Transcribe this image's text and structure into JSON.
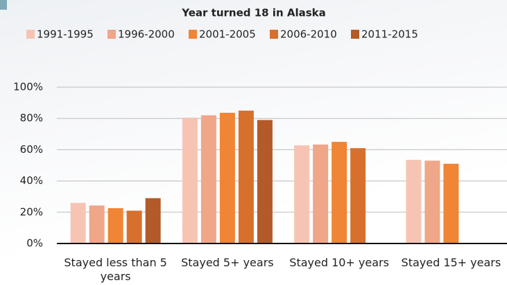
{
  "chart_data": {
    "type": "bar",
    "title": "Year turned 18 in Alaska",
    "categories": [
      "Stayed less than 5 years",
      "Stayed 5+ years",
      "Stayed 10+ years",
      "Stayed 15+ years"
    ],
    "series": [
      {
        "name": "1991-1995",
        "color": "#f7c4b4",
        "values": [
          26,
          80.5,
          62.8,
          53.5
        ]
      },
      {
        "name": "1996-2000",
        "color": "#f0a688",
        "values": [
          24.3,
          82,
          63.3,
          53
        ]
      },
      {
        "name": "2001-2005",
        "color": "#ef8535",
        "values": [
          22.6,
          83.6,
          65,
          51
        ]
      },
      {
        "name": "2006-2010",
        "color": "#d8702d",
        "values": [
          21,
          85,
          61,
          null
        ]
      },
      {
        "name": "2011-2015",
        "color": "#b35a28",
        "values": [
          29,
          79,
          null,
          null
        ]
      }
    ],
    "ylim": [
      0,
      100
    ],
    "yticks": [
      {
        "value": 0,
        "label": "0%"
      },
      {
        "value": 20,
        "label": "20%"
      },
      {
        "value": 40,
        "label": "40%"
      },
      {
        "value": 60,
        "label": "60%"
      },
      {
        "value": 80,
        "label": "80%"
      },
      {
        "value": 100,
        "label": "100%"
      }
    ],
    "grid": true
  }
}
